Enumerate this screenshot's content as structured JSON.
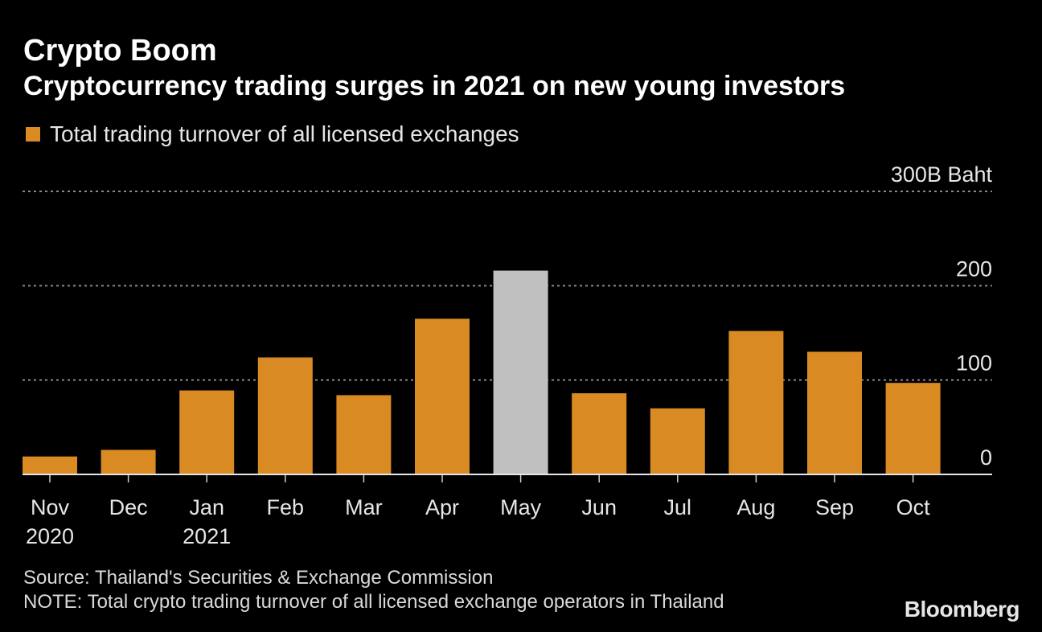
{
  "colors": {
    "background": "#000000",
    "bar": "#d98a22",
    "highlight_bar": "#c0c0c0",
    "gridline": "#8a8a8a",
    "text": "#e6e6e6"
  },
  "chart_data": {
    "type": "bar",
    "title": "Crypto Boom",
    "subtitle": "Cryptocurrency trading surges in 2021 on new young investors",
    "series": [
      {
        "name": "Total trading turnover of all licensed exchanges",
        "values": [
          19,
          26,
          89,
          124,
          84,
          165,
          216,
          86,
          70,
          152,
          130,
          97
        ]
      }
    ],
    "categories": [
      "Nov 2020",
      "Dec",
      "Jan 2021",
      "Feb",
      "Mar",
      "Apr",
      "May",
      "Jun",
      "Jul",
      "Aug",
      "Sep",
      "Oct"
    ],
    "category_lines": [
      [
        "Nov",
        "2020"
      ],
      [
        "Dec"
      ],
      [
        "Jan",
        "2021"
      ],
      [
        "Feb"
      ],
      [
        "Mar"
      ],
      [
        "Apr"
      ],
      [
        "May"
      ],
      [
        "Jun"
      ],
      [
        "Jul"
      ],
      [
        "Aug"
      ],
      [
        "Sep"
      ],
      [
        "Oct"
      ]
    ],
    "highlight_index": 6,
    "ylim": [
      0,
      300
    ],
    "y_ticks": [
      {
        "value": 0,
        "label": "0"
      },
      {
        "value": 100,
        "label": "100"
      },
      {
        "value": 200,
        "label": "200"
      },
      {
        "value": 300,
        "label": "300B Baht"
      }
    ],
    "grid": true,
    "y_axis_side": "right",
    "legend_position": "top-left"
  },
  "footer": {
    "source": "Source: Thailand's Securities & Exchange Commission",
    "note": "NOTE: Total crypto trading turnover of all licensed exchange operators in Thailand",
    "brand": "Bloomberg"
  }
}
